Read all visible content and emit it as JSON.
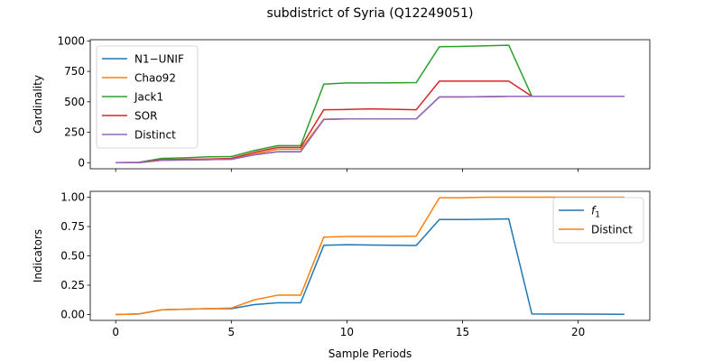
{
  "title": "subdistrict of Syria (Q12249051)",
  "x_label": "Sample Periods",
  "chart_data": [
    {
      "type": "line",
      "ylabel": "Cardinality",
      "xlim": [
        -1.1,
        23.1
      ],
      "ylim": [
        -50,
        1010
      ],
      "xticks": [
        0,
        5,
        10,
        15,
        20
      ],
      "yticks": [
        0,
        250,
        500,
        750,
        1000
      ],
      "ytick_labels": [
        "0",
        "250",
        "500",
        "750",
        "1000"
      ],
      "show_x_tick_labels": false,
      "legend_position": "top-left",
      "x": [
        0,
        1,
        2,
        3,
        4,
        5,
        6,
        7,
        8,
        9,
        10,
        11,
        12,
        13,
        14,
        15,
        16,
        17,
        18,
        19,
        20,
        21,
        22
      ],
      "series": [
        {
          "name": "N1−UNIF",
          "color": "#1f77b4",
          "values": [
            0,
            0,
            20,
            22,
            25,
            28,
            65,
            90,
            90,
            355,
            360,
            360,
            360,
            360,
            540,
            540,
            542,
            545,
            545,
            545,
            545,
            545,
            545
          ]
        },
        {
          "name": "Chao92",
          "color": "#ff7f0e",
          "values": [
            0,
            0,
            20,
            22,
            25,
            30,
            72,
            110,
            110,
            358,
            360,
            360,
            360,
            360,
            540,
            540,
            542,
            545,
            545,
            545,
            545,
            545,
            545
          ]
        },
        {
          "name": "Jack1",
          "color": "#2ca02c",
          "values": [
            0,
            3,
            35,
            40,
            48,
            50,
            100,
            140,
            140,
            645,
            655,
            655,
            656,
            658,
            953,
            955,
            960,
            965,
            545,
            545,
            545,
            545,
            545
          ]
        },
        {
          "name": "SOR",
          "color": "#d62728",
          "values": [
            0,
            2,
            25,
            28,
            30,
            35,
            85,
            125,
            125,
            435,
            437,
            442,
            438,
            435,
            670,
            670,
            670,
            670,
            545,
            545,
            545,
            545,
            545
          ]
        },
        {
          "name": "Distinct",
          "color": "#9467bd",
          "values": [
            0,
            0,
            20,
            22,
            25,
            28,
            65,
            90,
            90,
            355,
            360,
            360,
            360,
            360,
            540,
            540,
            542,
            545,
            545,
            545,
            545,
            545,
            545
          ]
        }
      ]
    },
    {
      "type": "line",
      "ylabel": "Indicators",
      "xlim": [
        -1.1,
        23.1
      ],
      "ylim": [
        -0.05,
        1.05
      ],
      "xticks": [
        0,
        5,
        10,
        15,
        20
      ],
      "yticks": [
        0,
        0.25,
        0.5,
        0.75,
        1.0
      ],
      "ytick_labels": [
        "0.00",
        "0.25",
        "0.50",
        "0.75",
        "1.00"
      ],
      "show_x_tick_labels": true,
      "legend_position": "top-right",
      "x": [
        0,
        1,
        2,
        3,
        4,
        5,
        6,
        7,
        8,
        9,
        10,
        11,
        12,
        13,
        14,
        15,
        16,
        17,
        18,
        19,
        20,
        21,
        22
      ],
      "series": [
        {
          "name": "f1",
          "color": "#1f77b4",
          "values": [
            0,
            0.005,
            0.04,
            0.045,
            0.05,
            0.05,
            0.085,
            0.1,
            0.1,
            0.59,
            0.595,
            0.592,
            0.59,
            0.588,
            0.81,
            0.81,
            0.812,
            0.815,
            0.005,
            0.004,
            0.004,
            0.003,
            0.002
          ]
        },
        {
          "name": "Distinct",
          "color": "#ff7f0e",
          "values": [
            0,
            0.005,
            0.04,
            0.045,
            0.05,
            0.055,
            0.125,
            0.165,
            0.165,
            0.66,
            0.665,
            0.665,
            0.665,
            0.668,
            0.995,
            0.995,
            1.0,
            1.0,
            1.0,
            1.0,
            1.0,
            1.0,
            1.0
          ]
        }
      ]
    }
  ]
}
